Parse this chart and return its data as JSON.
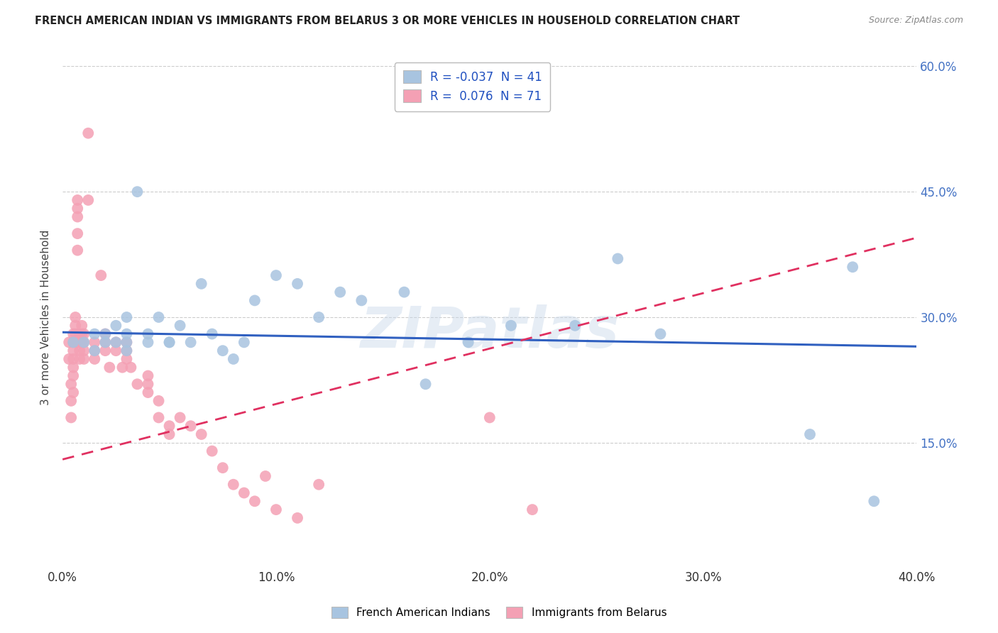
{
  "title": "FRENCH AMERICAN INDIAN VS IMMIGRANTS FROM BELARUS 3 OR MORE VEHICLES IN HOUSEHOLD CORRELATION CHART",
  "source": "Source: ZipAtlas.com",
  "ylabel": "3 or more Vehicles in Household",
  "legend_label1": "French American Indians",
  "legend_label2": "Immigrants from Belarus",
  "R1": -0.037,
  "N1": 41,
  "R2": 0.076,
  "N2": 71,
  "color1": "#a8c4e0",
  "color2": "#f4a0b4",
  "line_color1": "#3060c0",
  "line_color2": "#e03060",
  "xlim": [
    0.0,
    0.4
  ],
  "ylim": [
    0.0,
    0.6
  ],
  "xtick_vals": [
    0.0,
    0.1,
    0.2,
    0.3,
    0.4
  ],
  "ytick_vals_right": [
    0.15,
    0.3,
    0.45,
    0.6
  ],
  "ytick_labels_right": [
    "15.0%",
    "30.0%",
    "45.0%",
    "60.0%"
  ],
  "blue_x": [
    0.005,
    0.01,
    0.015,
    0.015,
    0.02,
    0.02,
    0.025,
    0.025,
    0.03,
    0.03,
    0.03,
    0.03,
    0.035,
    0.04,
    0.04,
    0.045,
    0.05,
    0.05,
    0.055,
    0.06,
    0.065,
    0.07,
    0.075,
    0.08,
    0.085,
    0.09,
    0.1,
    0.11,
    0.12,
    0.13,
    0.14,
    0.16,
    0.17,
    0.19,
    0.21,
    0.24,
    0.26,
    0.28,
    0.35,
    0.37,
    0.38
  ],
  "blue_y": [
    0.27,
    0.27,
    0.28,
    0.26,
    0.28,
    0.27,
    0.29,
    0.27,
    0.28,
    0.27,
    0.26,
    0.3,
    0.45,
    0.28,
    0.27,
    0.3,
    0.27,
    0.27,
    0.29,
    0.27,
    0.34,
    0.28,
    0.26,
    0.25,
    0.27,
    0.32,
    0.35,
    0.34,
    0.3,
    0.33,
    0.32,
    0.33,
    0.22,
    0.27,
    0.29,
    0.29,
    0.37,
    0.28,
    0.16,
    0.36,
    0.08
  ],
  "pink_x": [
    0.003,
    0.003,
    0.004,
    0.004,
    0.004,
    0.005,
    0.005,
    0.005,
    0.005,
    0.005,
    0.005,
    0.005,
    0.006,
    0.006,
    0.006,
    0.006,
    0.007,
    0.007,
    0.007,
    0.007,
    0.007,
    0.008,
    0.008,
    0.008,
    0.008,
    0.009,
    0.009,
    0.009,
    0.01,
    0.01,
    0.01,
    0.01,
    0.012,
    0.012,
    0.015,
    0.015,
    0.015,
    0.018,
    0.02,
    0.02,
    0.02,
    0.022,
    0.025,
    0.025,
    0.028,
    0.03,
    0.03,
    0.03,
    0.032,
    0.035,
    0.04,
    0.04,
    0.04,
    0.045,
    0.045,
    0.05,
    0.05,
    0.055,
    0.06,
    0.065,
    0.07,
    0.075,
    0.08,
    0.085,
    0.09,
    0.095,
    0.1,
    0.11,
    0.12,
    0.2,
    0.22
  ],
  "pink_y": [
    0.27,
    0.25,
    0.22,
    0.2,
    0.18,
    0.28,
    0.27,
    0.26,
    0.25,
    0.24,
    0.23,
    0.21,
    0.3,
    0.29,
    0.28,
    0.27,
    0.44,
    0.43,
    0.42,
    0.4,
    0.38,
    0.28,
    0.27,
    0.26,
    0.25,
    0.29,
    0.28,
    0.27,
    0.28,
    0.27,
    0.26,
    0.25,
    0.52,
    0.44,
    0.27,
    0.26,
    0.25,
    0.35,
    0.28,
    0.27,
    0.26,
    0.24,
    0.27,
    0.26,
    0.24,
    0.27,
    0.26,
    0.25,
    0.24,
    0.22,
    0.23,
    0.22,
    0.21,
    0.2,
    0.18,
    0.17,
    0.16,
    0.18,
    0.17,
    0.16,
    0.14,
    0.12,
    0.1,
    0.09,
    0.08,
    0.11,
    0.07,
    0.06,
    0.1,
    0.18,
    0.07
  ],
  "blue_line_x0": 0.0,
  "blue_line_y0": 0.282,
  "blue_line_x1": 0.4,
  "blue_line_y1": 0.265,
  "pink_line_x0": 0.0,
  "pink_line_y0": 0.13,
  "pink_line_x1": 0.4,
  "pink_line_y1": 0.395,
  "watermark": "ZIPatlas",
  "background_color": "#ffffff",
  "grid_color": "#cccccc"
}
